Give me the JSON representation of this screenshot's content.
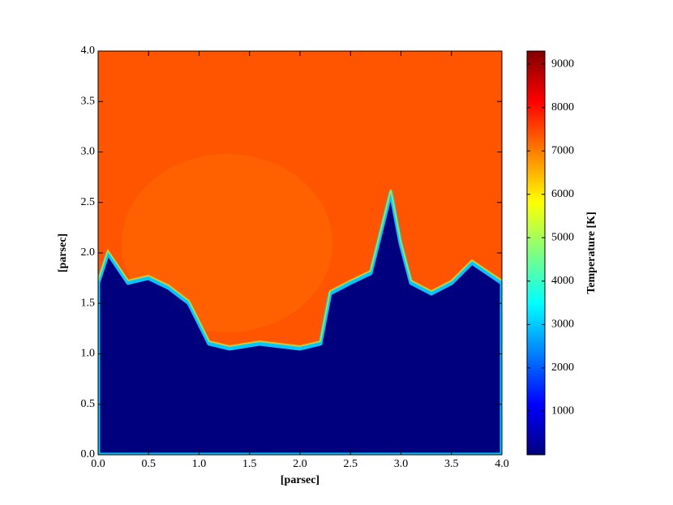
{
  "chart_data": {
    "type": "heatmap",
    "xlabel": "[parsec]",
    "ylabel": "[parsec]",
    "xlim": [
      0,
      4
    ],
    "ylim": [
      0,
      4
    ],
    "xticks": [
      {
        "value": 0,
        "label": "0.0"
      },
      0.5,
      {
        "value": 1,
        "label": "1.0"
      },
      1.5,
      {
        "value": 2,
        "label": "2.0"
      },
      2.5,
      {
        "value": 3,
        "label": "3.0"
      },
      3.5,
      {
        "value": 4,
        "label": "4.0"
      }
    ],
    "yticks": [
      {
        "value": 0,
        "label": "0.0"
      },
      0.5,
      {
        "value": 1,
        "label": "1.0"
      },
      1.5,
      {
        "value": 2,
        "label": "2.0"
      },
      2.5,
      {
        "value": 3,
        "label": "3.0"
      },
      3.5,
      {
        "value": 4,
        "label": "4.0"
      }
    ],
    "colorbar": {
      "label": "Temperature [K]",
      "colormap": "jet",
      "clim": [
        0,
        9300
      ],
      "ticks": [
        1000,
        2000,
        3000,
        4000,
        5000,
        6000,
        7000,
        8000,
        9000
      ]
    }
  }
}
